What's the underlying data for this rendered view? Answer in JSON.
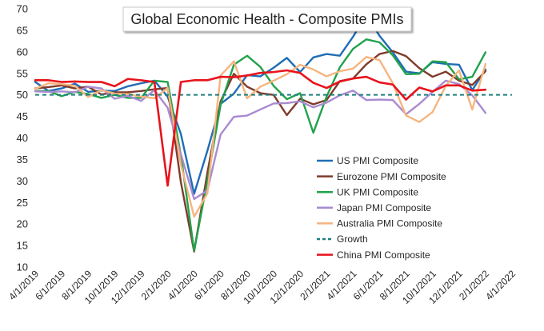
{
  "chart_data": {
    "type": "line",
    "title": "Global Economic Health - Composite PMIs",
    "ylim": [
      10,
      70
    ],
    "y_ticks": [
      10,
      15,
      20,
      25,
      30,
      35,
      40,
      45,
      50,
      55,
      60,
      65,
      70
    ],
    "x_tick_labels": [
      "4/1/2019",
      "6/1/2019",
      "8/1/2019",
      "10/1/2019",
      "12/1/2019",
      "2/1/2020",
      "4/1/2020",
      "6/1/2020",
      "8/1/2020",
      "10/1/2020",
      "12/1/2020",
      "2/1/2021",
      "4/1/2021",
      "6/1/2021",
      "8/1/2021",
      "10/1/2021",
      "12/1/2021",
      "2/1/2022",
      "4/1/2022"
    ],
    "x_range_months": [
      "2019-04",
      "2022-04"
    ],
    "grid": false,
    "legend_position": "bottom-right",
    "x": [
      "2019-04",
      "2019-05",
      "2019-06",
      "2019-07",
      "2019-08",
      "2019-09",
      "2019-10",
      "2019-11",
      "2019-12",
      "2020-01",
      "2020-02",
      "2020-03",
      "2020-04",
      "2020-05",
      "2020-06",
      "2020-07",
      "2020-08",
      "2020-09",
      "2020-10",
      "2020-11",
      "2020-12",
      "2021-01",
      "2021-02",
      "2021-03",
      "2021-04",
      "2021-05",
      "2021-06",
      "2021-07",
      "2021-08",
      "2021-09",
      "2021-10",
      "2021-11",
      "2021-12",
      "2022-01",
      "2022-02"
    ],
    "series": [
      {
        "name": "US PMI Composite",
        "color": "#1f6db5",
        "dashed": false,
        "values": [
          53.0,
          50.9,
          51.5,
          52.6,
          50.7,
          51.0,
          50.9,
          52.0,
          52.7,
          53.3,
          49.6,
          40.9,
          27.0,
          37.0,
          47.9,
          50.3,
          54.6,
          54.3,
          56.3,
          58.6,
          55.3,
          58.7,
          59.5,
          59.1,
          63.5,
          68.7,
          63.7,
          59.9,
          55.4,
          55.0,
          57.6,
          57.2,
          57.0,
          51.1,
          55.9
        ]
      },
      {
        "name": "Eurozone PMI Composite",
        "color": "#7f3b2b",
        "dashed": false,
        "values": [
          51.5,
          51.8,
          52.2,
          51.5,
          51.9,
          50.1,
          50.6,
          50.6,
          50.9,
          51.3,
          51.6,
          29.7,
          13.6,
          31.9,
          48.5,
          54.9,
          51.9,
          50.4,
          50.0,
          45.3,
          49.1,
          47.8,
          48.8,
          53.2,
          53.8,
          57.1,
          59.5,
          60.2,
          59.0,
          56.2,
          54.2,
          55.4,
          53.3,
          52.3,
          55.5
        ]
      },
      {
        "name": "UK PMI Composite",
        "color": "#21a24c",
        "dashed": false,
        "values": [
          50.9,
          50.9,
          49.7,
          50.7,
          50.2,
          49.3,
          50.0,
          49.3,
          49.3,
          53.3,
          53.0,
          36.0,
          13.8,
          30.0,
          47.7,
          57.0,
          59.1,
          56.5,
          52.1,
          49.0,
          50.4,
          41.2,
          49.6,
          56.4,
          60.7,
          62.9,
          62.2,
          59.2,
          54.8,
          54.9,
          57.8,
          57.6,
          53.6,
          54.2,
          59.9
        ]
      },
      {
        "name": "Japan PMI Composite",
        "color": "#a98bd1",
        "dashed": false,
        "values": [
          50.8,
          50.7,
          50.8,
          50.6,
          51.9,
          51.5,
          49.1,
          49.8,
          48.6,
          51.1,
          47.0,
          36.2,
          25.8,
          27.8,
          40.8,
          44.9,
          45.2,
          46.6,
          48.0,
          48.1,
          48.5,
          47.1,
          48.2,
          49.9,
          51.0,
          48.8,
          48.9,
          48.8,
          45.5,
          47.9,
          50.7,
          53.3,
          52.5,
          49.9,
          45.8
        ]
      },
      {
        "name": "Australia PMI Composite",
        "color": "#f6b57f",
        "dashed": false,
        "values": [
          51.4,
          52.7,
          52.5,
          52.1,
          49.5,
          51.1,
          50.3,
          50.2,
          49.6,
          49.2,
          51.6,
          33.8,
          21.7,
          27.1,
          54.5,
          57.8,
          49.2,
          51.9,
          53.3,
          54.8,
          57.0,
          55.9,
          54.3,
          55.5,
          56.1,
          58.8,
          58.1,
          52.7,
          45.2,
          43.7,
          46.0,
          52.1,
          55.7,
          46.6,
          57.2
        ]
      },
      {
        "name": "Growth",
        "color": "#1f7f80",
        "dashed": true,
        "values": [
          50,
          50,
          50,
          50,
          50,
          50,
          50,
          50,
          50,
          50,
          50,
          50,
          50,
          50,
          50,
          50,
          50,
          50,
          50,
          50,
          50,
          50,
          50,
          50,
          50,
          50,
          50,
          50,
          50,
          50,
          50,
          50,
          50,
          50,
          50
        ]
      },
      {
        "name": "China PMI Composite",
        "color": "#e8131b",
        "dashed": false,
        "values": [
          53.4,
          53.4,
          53.0,
          53.1,
          53.0,
          53.0,
          52.0,
          53.7,
          53.4,
          53.0,
          28.9,
          53.0,
          53.4,
          53.4,
          54.2,
          54.1,
          54.5,
          55.1,
          55.3,
          55.7,
          55.1,
          52.8,
          51.6,
          53.1,
          53.8,
          54.2,
          52.9,
          52.4,
          48.9,
          51.7,
          50.8,
          52.2,
          52.2,
          51.0,
          51.2
        ]
      }
    ]
  }
}
